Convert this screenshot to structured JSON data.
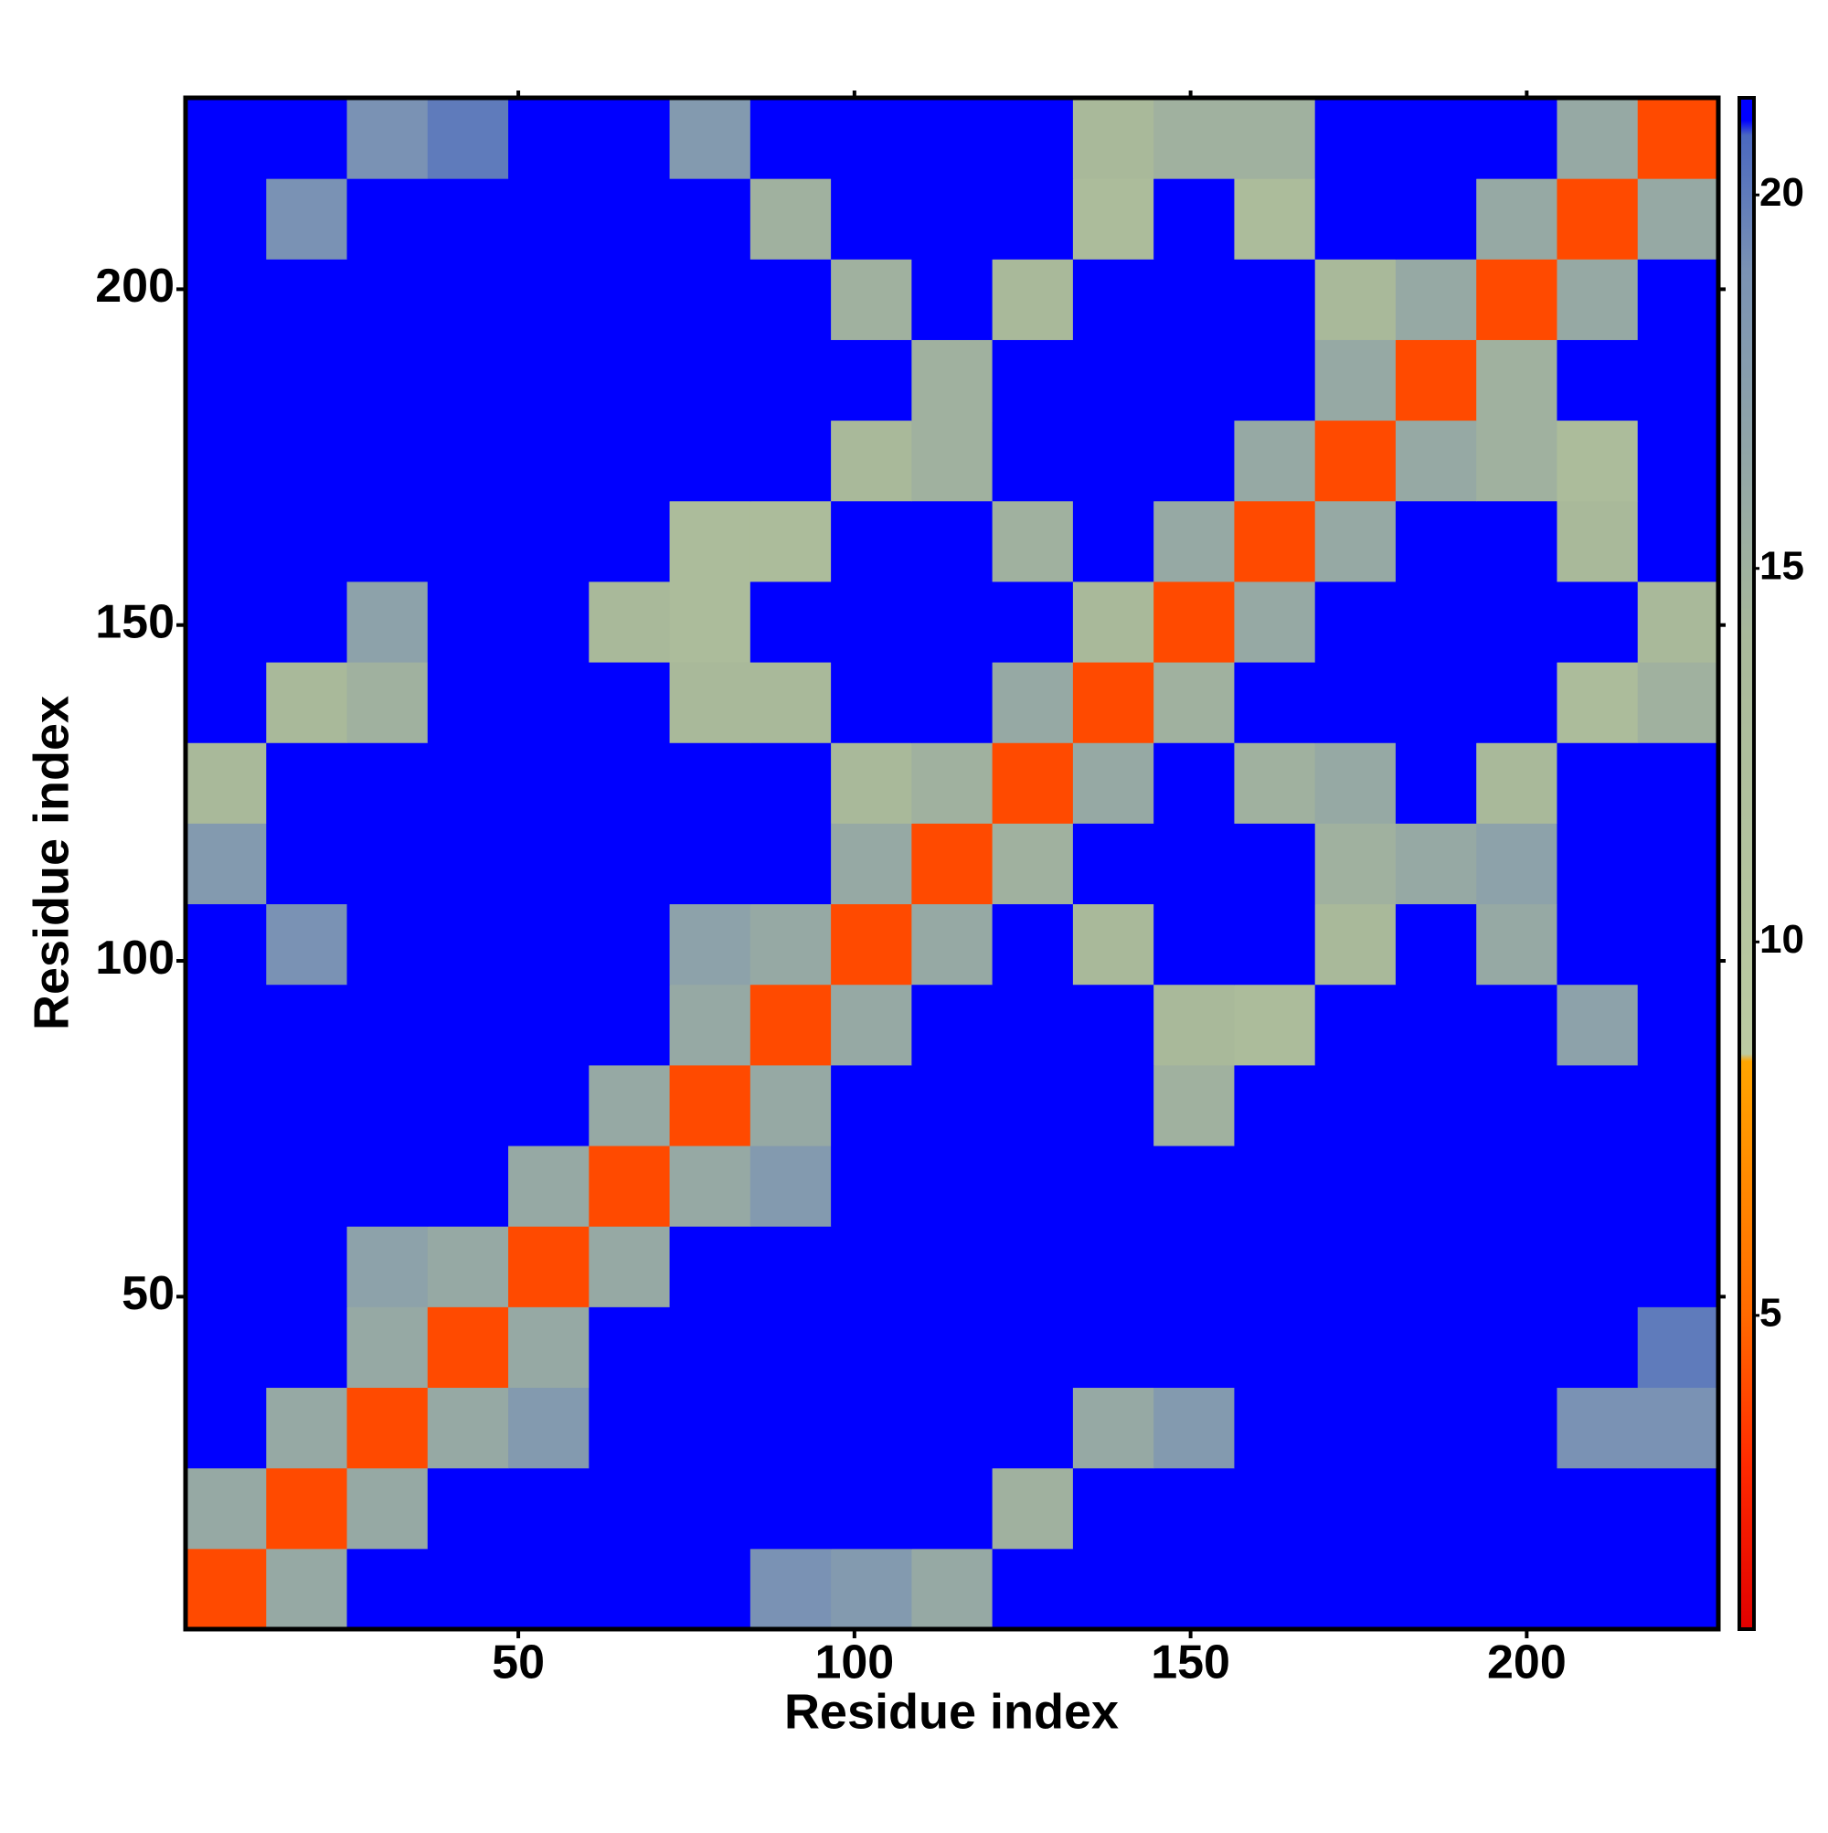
{
  "chart_data": {
    "type": "heatmap",
    "x_label": "Residue index",
    "y_label": "Residue index",
    "x": [
      6.5,
      18.5,
      30.5,
      42.5,
      54.5,
      66.5,
      78.5,
      90.5,
      102.5,
      114.5,
      126.5,
      138.5,
      150.5,
      162.5,
      174.5,
      186.5,
      198.5,
      210.5,
      222.5
    ],
    "y": [
      6.5,
      18.5,
      30.5,
      42.5,
      54.5,
      66.5,
      78.5,
      90.5,
      102.5,
      114.5,
      126.5,
      138.5,
      150.5,
      162.5,
      174.5,
      186.5,
      198.5,
      210.5,
      222.5
    ],
    "z": [
      [
        4,
        16,
        21,
        21,
        21,
        21,
        21,
        19,
        18,
        16,
        21,
        21,
        21,
        21,
        21,
        21,
        21,
        21,
        21
      ],
      [
        16,
        4,
        16,
        21,
        21,
        21,
        21,
        21,
        21,
        21,
        15,
        21,
        21,
        21,
        21,
        21,
        21,
        21,
        21
      ],
      [
        21,
        16,
        4,
        16,
        18,
        21,
        21,
        21,
        21,
        21,
        21,
        16,
        18,
        21,
        21,
        21,
        21,
        19,
        19
      ],
      [
        21,
        21,
        16,
        4,
        16,
        21,
        21,
        21,
        21,
        21,
        21,
        21,
        21,
        21,
        21,
        21,
        21,
        21,
        20
      ],
      [
        21,
        21,
        17,
        16,
        4,
        16,
        21,
        21,
        21,
        21,
        21,
        21,
        21,
        21,
        21,
        21,
        21,
        21,
        21
      ],
      [
        21,
        21,
        21,
        21,
        16,
        4,
        16,
        18,
        21,
        21,
        21,
        21,
        21,
        21,
        21,
        21,
        21,
        21,
        21
      ],
      [
        21,
        21,
        21,
        21,
        21,
        16,
        4,
        16,
        21,
        21,
        21,
        21,
        15,
        21,
        21,
        21,
        21,
        21,
        21
      ],
      [
        21,
        21,
        21,
        21,
        21,
        21,
        16,
        4,
        16,
        21,
        21,
        21,
        14,
        13,
        21,
        21,
        21,
        17,
        21
      ],
      [
        21,
        19,
        21,
        21,
        21,
        21,
        17,
        16,
        4,
        16,
        21,
        14,
        21,
        21,
        14,
        21,
        16,
        21,
        21
      ],
      [
        18,
        21,
        21,
        21,
        21,
        21,
        21,
        21,
        16,
        4,
        15,
        21,
        21,
        21,
        15,
        16,
        17,
        21,
        21
      ],
      [
        14,
        21,
        21,
        21,
        21,
        21,
        21,
        21,
        14,
        15,
        4,
        16,
        21,
        15,
        16,
        21,
        14,
        21,
        21
      ],
      [
        21,
        14,
        15,
        21,
        21,
        21,
        14,
        14,
        21,
        21,
        16,
        4,
        15,
        21,
        21,
        21,
        21,
        13,
        15
      ],
      [
        21,
        21,
        17,
        21,
        21,
        14,
        13,
        21,
        21,
        21,
        21,
        14,
        4,
        16,
        21,
        21,
        21,
        21,
        14
      ],
      [
        21,
        21,
        21,
        21,
        21,
        21,
        13,
        13,
        21,
        21,
        15,
        21,
        16,
        4,
        16,
        21,
        21,
        14,
        21
      ],
      [
        21,
        21,
        21,
        21,
        21,
        21,
        21,
        21,
        14,
        15,
        21,
        21,
        21,
        16,
        4,
        16,
        15,
        13,
        21
      ],
      [
        21,
        21,
        21,
        21,
        21,
        21,
        21,
        21,
        21,
        15,
        21,
        21,
        21,
        21,
        16,
        4,
        15,
        21,
        21
      ],
      [
        21,
        21,
        21,
        21,
        21,
        21,
        21,
        21,
        15,
        21,
        14,
        21,
        21,
        21,
        14,
        16,
        4,
        16,
        21
      ],
      [
        21,
        19,
        21,
        21,
        21,
        21,
        21,
        15,
        21,
        21,
        21,
        13,
        21,
        13,
        21,
        21,
        16,
        4,
        16
      ],
      [
        21,
        21,
        19,
        20,
        21,
        21,
        18,
        21,
        21,
        21,
        21,
        14,
        15,
        15,
        21,
        21,
        21,
        16,
        4
      ]
    ],
    "xlim": [
      0.5,
      228.5
    ],
    "ylim": [
      0.5,
      228.5
    ],
    "xticks": [
      50,
      100,
      150,
      200
    ],
    "yticks": [
      50,
      100,
      150,
      200
    ],
    "zlim": [
      0.8,
      21.3
    ],
    "zticks": [
      5,
      10,
      15,
      20
    ],
    "colorscale": [
      {
        "value": 0.8,
        "color": "#e00000"
      },
      {
        "value": 3,
        "color": "#ff2a00"
      },
      {
        "value": 5,
        "color": "#ff6a00"
      },
      {
        "value": 8.4,
        "color": "#ffa500"
      },
      {
        "value": 8.5,
        "color": "#bccba2"
      },
      {
        "value": 14,
        "color": "#a9b99a"
      },
      {
        "value": 19,
        "color": "#7a92b4"
      },
      {
        "value": 20.8,
        "color": "#4a68c0"
      },
      {
        "value": 21,
        "color": "#0000ff"
      },
      {
        "value": 21.3,
        "color": "#0000ff"
      }
    ]
  }
}
